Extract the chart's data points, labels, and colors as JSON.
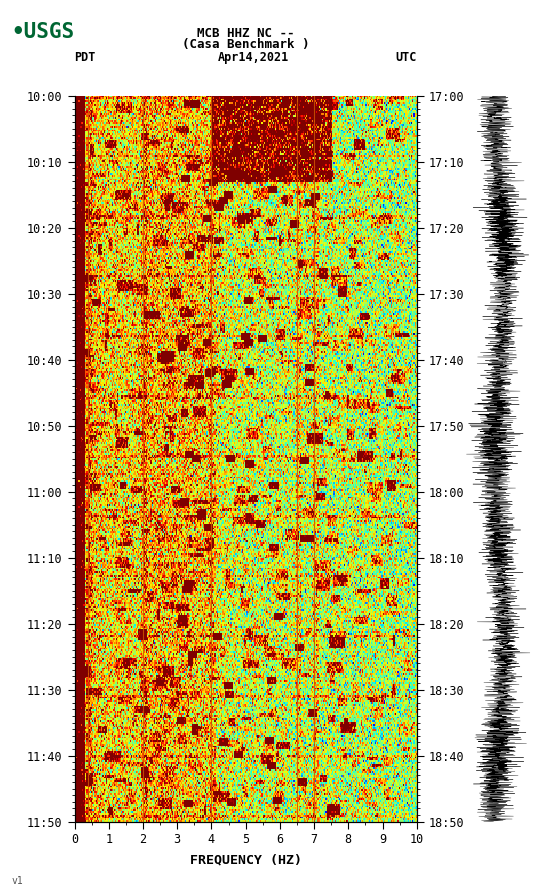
{
  "title_line1": "MCB HHZ NC --",
  "title_line2": "(Casa Benchmark )",
  "left_label": "PDT",
  "date_label": "Apr14,2021",
  "right_label": "UTC",
  "freq_label": "FREQUENCY (HZ)",
  "pdt_ticks": [
    "10:00",
    "10:10",
    "10:20",
    "10:30",
    "10:40",
    "10:50",
    "11:00",
    "11:10",
    "11:20",
    "11:30",
    "11:40",
    "11:50"
  ],
  "utc_ticks": [
    "17:00",
    "17:10",
    "17:20",
    "17:30",
    "17:40",
    "17:50",
    "18:00",
    "18:10",
    "18:20",
    "18:30",
    "18:40",
    "18:50"
  ],
  "freq_min": 0,
  "freq_max": 10,
  "freq_ticks": [
    0,
    1,
    2,
    3,
    4,
    5,
    6,
    7,
    8,
    9,
    10
  ],
  "background_color": "#ffffff",
  "spectrogram_cmap": "jet",
  "fig_width": 5.52,
  "fig_height": 8.93,
  "usgs_color": "#006633",
  "vertical_line_freqs": [
    0.4,
    2.0,
    4.0,
    6.5,
    7.0
  ],
  "n_time": 400,
  "n_freq": 300
}
